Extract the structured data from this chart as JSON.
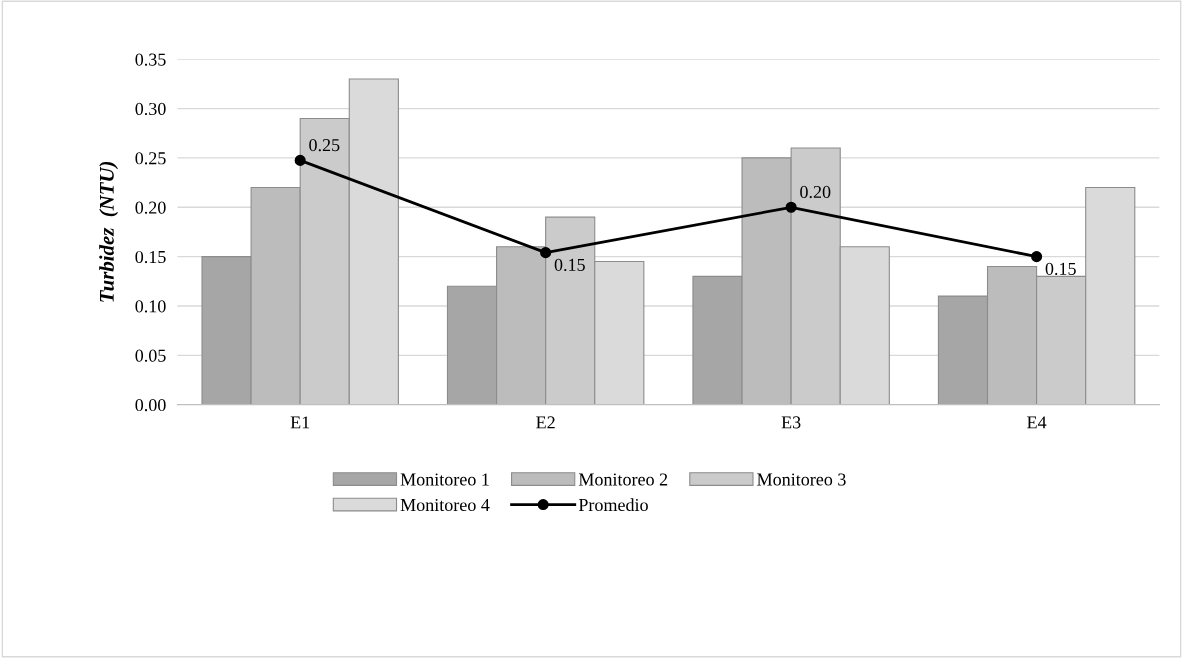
{
  "chart_data": {
    "type": "bar",
    "ylabel": "Turbidez  (NTU)",
    "categories": [
      "E1",
      "E2",
      "E3",
      "E4"
    ],
    "series": [
      {
        "name": "Monitoreo 1",
        "color": "#a6a6a6",
        "values": [
          0.15,
          0.12,
          0.13,
          0.11
        ]
      },
      {
        "name": "Monitoreo 2",
        "color": "#bcbcbc",
        "values": [
          0.22,
          0.16,
          0.25,
          0.14
        ]
      },
      {
        "name": "Monitoreo 3",
        "color": "#cbcbcb",
        "values": [
          0.29,
          0.19,
          0.26,
          0.13
        ]
      },
      {
        "name": "Monitoreo 4",
        "color": "#dadada",
        "values": [
          0.33,
          0.145,
          0.16,
          0.22
        ]
      },
      {
        "name": "Promedio",
        "type": "line",
        "color": "#000000",
        "marker": "circle",
        "values": [
          0.2475,
          0.154,
          0.2,
          0.15
        ],
        "value_labels": [
          "0.25",
          "0.15",
          "0.20",
          "0.15"
        ]
      }
    ],
    "ylim": [
      0,
      0.35
    ],
    "yticks": [
      {
        "value": 0,
        "label": "0.00"
      },
      {
        "value": 0.05,
        "label": "0.05"
      },
      {
        "value": 0.1,
        "label": "0.10"
      },
      {
        "value": 0.15,
        "label": "0.15"
      },
      {
        "value": 0.2,
        "label": "0.20"
      },
      {
        "value": 0.25,
        "label": "0.25"
      },
      {
        "value": 0.3,
        "label": "0.30"
      },
      {
        "value": 0.35,
        "label": "0.35"
      }
    ],
    "grid": "y",
    "legend": "bottom"
  }
}
